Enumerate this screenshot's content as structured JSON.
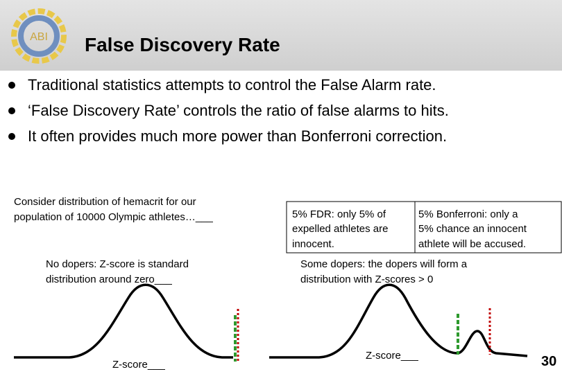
{
  "header": {
    "logo_text": "ABI",
    "title": "False Discovery Rate"
  },
  "bullets": [
    "Traditional statistics attempts to control the False Alarm rate.",
    "‘False Discovery Rate’ controls the ratio of false alarms to hits.",
    "It often provides much more power than Bonferroni correction."
  ],
  "left_panel": {
    "intro": [
      "Consider distribution of hemacrit for our",
      "population of 10000 Olympic athletes…___"
    ],
    "caption": [
      "No dopers: Z-score is standard",
      "distribution around zero___"
    ],
    "axis_label": "Z-score___"
  },
  "right_panel": {
    "table": {
      "rows": [
        [
          "5% FDR: only 5% of",
          "5% Bonferroni: only a"
        ],
        [
          "expelled athletes are",
          "5% chance an innocent"
        ],
        [
          "innocent.",
          "athlete will be accused."
        ]
      ]
    },
    "caption": [
      "Some dopers: the dopers will form a",
      "distribution with Z-scores > 0"
    ],
    "axis_label": "Z-score___"
  },
  "page_number": "30"
}
